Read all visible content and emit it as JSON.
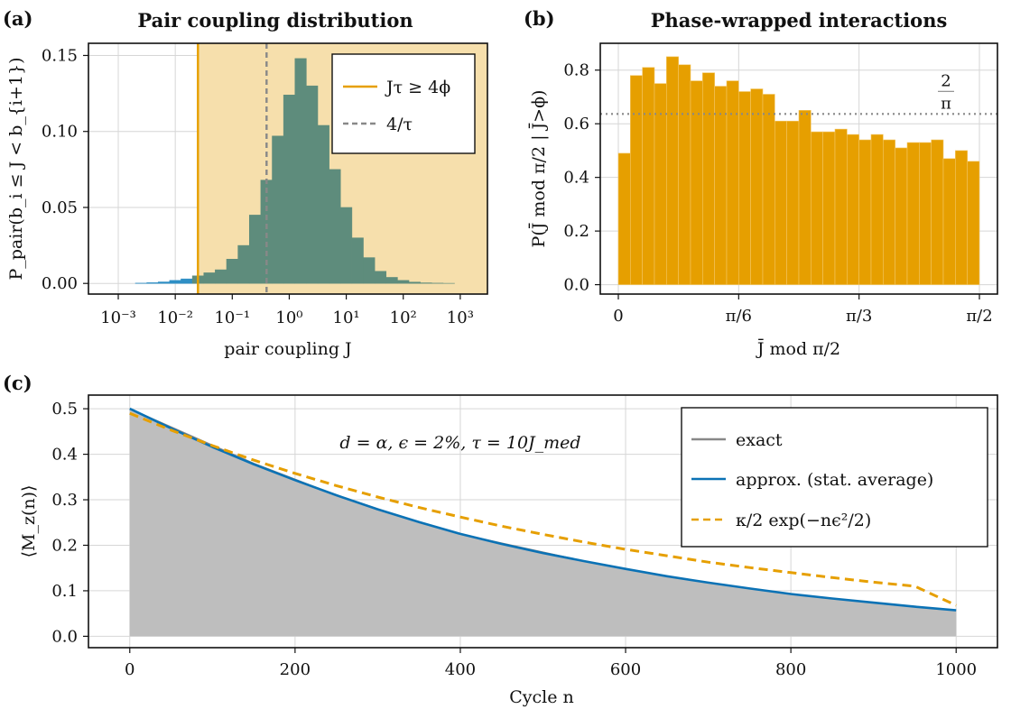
{
  "chart_data": [
    {
      "id": "a",
      "panel_label": "(a)",
      "type": "bar",
      "title": "Pair coupling distribution",
      "xlabel": "pair coupling J",
      "ylabel": "P_pair(b_i ≤ J < b_{i+1})",
      "xscale": "log",
      "xlim": [
        0.0003,
        3000
      ],
      "ylim": [
        -0.007,
        0.158
      ],
      "x_ticks": [
        {
          "v": 0.001,
          "label": "10⁻³"
        },
        {
          "v": 0.01,
          "label": "10⁻²"
        },
        {
          "v": 0.1,
          "label": "10⁻¹"
        },
        {
          "v": 1,
          "label": "10⁰"
        },
        {
          "v": 10,
          "label": "10¹"
        },
        {
          "v": 100,
          "label": "10²"
        },
        {
          "v": 1000,
          "label": "10³"
        }
      ],
      "y_ticks": [
        {
          "v": 0.0,
          "label": "0.00"
        },
        {
          "v": 0.05,
          "label": "0.05"
        },
        {
          "v": 0.1,
          "label": "0.10"
        },
        {
          "v": 0.15,
          "label": "0.15"
        }
      ],
      "bin_edges_log10": [
        -2.9,
        -2.7,
        -2.5,
        -2.3,
        -2.1,
        -1.9,
        -1.7,
        -1.5,
        -1.3,
        -1.1,
        -0.9,
        -0.7,
        -0.5,
        -0.3,
        -0.1,
        0.1,
        0.3,
        0.5,
        0.7,
        0.9,
        1.1,
        1.3,
        1.5,
        1.7,
        1.9,
        2.1,
        2.3,
        2.5,
        2.7,
        2.9
      ],
      "values": [
        0.0,
        0.0002,
        0.0005,
        0.001,
        0.002,
        0.003,
        0.005,
        0.007,
        0.009,
        0.016,
        0.025,
        0.045,
        0.068,
        0.097,
        0.124,
        0.148,
        0.13,
        0.104,
        0.075,
        0.05,
        0.03,
        0.017,
        0.008,
        0.004,
        0.002,
        0.0009,
        0.0004,
        0.0002,
        0.0001
      ],
      "threshold_J": 0.025,
      "dashed_line_J": 0.4,
      "colors": {
        "below": "#2f8fc5",
        "above": "#5e8c7c",
        "shade": "#f6dfac",
        "threshold": "#e69f00",
        "dashed": "#888888"
      },
      "legend": {
        "position": "top-right",
        "entries": [
          {
            "label": "Jτ ≥ 4ϕ",
            "style": "solid",
            "color": "#e69f00"
          },
          {
            "label": "4/τ",
            "style": "dashed",
            "color": "#888888"
          }
        ]
      },
      "grid": true
    },
    {
      "id": "b",
      "panel_label": "(b)",
      "type": "bar",
      "title": "Phase-wrapped interactions",
      "xlabel": "J̄ mod π/2",
      "ylabel": "P(J̄ mod π/2 | J̄>ϕ)",
      "xlim": [
        -0.0785,
        1.6493
      ],
      "ylim": [
        -0.035,
        0.9
      ],
      "x_ticks": [
        {
          "v": 0,
          "label": "0"
        },
        {
          "v": 0.5236,
          "label": "π/6"
        },
        {
          "v": 1.0472,
          "label": "π/3"
        },
        {
          "v": 1.5708,
          "label": "π/2"
        }
      ],
      "y_ticks": [
        {
          "v": 0.0,
          "label": "0.0"
        },
        {
          "v": 0.2,
          "label": "0.2"
        },
        {
          "v": 0.4,
          "label": "0.4"
        },
        {
          "v": 0.6,
          "label": "0.6"
        },
        {
          "v": 0.8,
          "label": "0.8"
        }
      ],
      "bin_range": [
        0,
        1.5708
      ],
      "values": [
        0.49,
        0.78,
        0.81,
        0.75,
        0.85,
        0.82,
        0.76,
        0.79,
        0.74,
        0.76,
        0.72,
        0.73,
        0.71,
        0.61,
        0.61,
        0.65,
        0.57,
        0.57,
        0.58,
        0.56,
        0.54,
        0.56,
        0.54,
        0.51,
        0.53,
        0.53,
        0.54,
        0.47,
        0.5,
        0.46
      ],
      "reference_line": {
        "y": 0.6366,
        "label_num": "2",
        "label_den": "π",
        "color": "#888888"
      },
      "bar_color": "#e69f00",
      "grid": true
    },
    {
      "id": "c",
      "panel_label": "(c)",
      "type": "line",
      "xlabel": "Cycle n",
      "ylabel": "⟨M_z(n)⟩",
      "xlim": [
        -50,
        1050
      ],
      "ylim": [
        -0.025,
        0.53
      ],
      "x_ticks": [
        {
          "v": 0,
          "label": "0"
        },
        {
          "v": 200,
          "label": "200"
        },
        {
          "v": 400,
          "label": "400"
        },
        {
          "v": 600,
          "label": "600"
        },
        {
          "v": 800,
          "label": "800"
        },
        {
          "v": 1000,
          "label": "1000"
        }
      ],
      "y_ticks": [
        {
          "v": 0.0,
          "label": "0.0"
        },
        {
          "v": 0.1,
          "label": "0.1"
        },
        {
          "v": 0.2,
          "label": "0.2"
        },
        {
          "v": 0.3,
          "label": "0.3"
        },
        {
          "v": 0.4,
          "label": "0.4"
        },
        {
          "v": 0.5,
          "label": "0.5"
        }
      ],
      "annotation": "d = α, ϵ = 2%, τ = 10J_med",
      "series": [
        {
          "name": "exact",
          "style": "area",
          "color": "#888888",
          "fill": "#bebebe",
          "x": [
            0,
            50,
            100,
            150,
            200,
            250,
            300,
            350,
            400,
            450,
            500,
            550,
            600,
            650,
            700,
            750,
            800,
            850,
            900,
            950,
            1000
          ],
          "y": [
            0.5,
            0.46,
            0.42,
            0.38,
            0.345,
            0.31,
            0.28,
            0.25,
            0.225,
            0.205,
            0.185,
            0.165,
            0.148,
            0.132,
            0.118,
            0.105,
            0.093,
            0.083,
            0.074,
            0.065,
            0.057
          ]
        },
        {
          "name": "approx. (stat. average)",
          "style": "solid",
          "color": "#0b72b5",
          "x": [
            0,
            50,
            100,
            150,
            200,
            250,
            300,
            350,
            400,
            450,
            500,
            550,
            600,
            650,
            700,
            750,
            800,
            850,
            900,
            950,
            1000
          ],
          "y": [
            0.5,
            0.457,
            0.416,
            0.378,
            0.343,
            0.31,
            0.279,
            0.251,
            0.225,
            0.203,
            0.183,
            0.165,
            0.148,
            0.132,
            0.118,
            0.105,
            0.093,
            0.083,
            0.074,
            0.065,
            0.057
          ]
        },
        {
          "name": "κ/2 exp(−nϵ²/2)",
          "style": "dashed",
          "color": "#e69f00",
          "x": [
            0,
            50,
            100,
            150,
            200,
            250,
            300,
            350,
            400,
            450,
            500,
            550,
            600,
            650,
            700,
            750,
            800,
            850,
            900,
            950,
            1000
          ],
          "y": [
            0.49,
            0.453,
            0.419,
            0.387,
            0.358,
            0.331,
            0.306,
            0.283,
            0.262,
            0.242,
            0.224,
            0.207,
            0.191,
            0.177,
            0.163,
            0.151,
            0.14,
            0.129,
            0.119,
            0.11,
            0.068
          ]
        }
      ],
      "legend": {
        "position": "top-right"
      },
      "grid": true
    }
  ]
}
